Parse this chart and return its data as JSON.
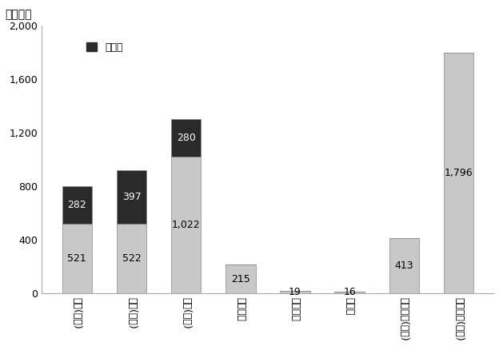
{
  "categories": [
    "日本(国立)",
    "日本(公立)",
    "日本(私立)",
    "イギリス",
    "フランス",
    "ドイツ",
    "アメリカ(州立)",
    "アメリカ(私立)"
  ],
  "base_values": [
    521,
    522,
    1022,
    215,
    19,
    16,
    413,
    1796
  ],
  "top_values": [
    282,
    397,
    280,
    0,
    0,
    0,
    0,
    0
  ],
  "base_labels": [
    "521",
    "522",
    "1,022",
    "215",
    "19",
    "16",
    "413",
    "1,796"
  ],
  "top_labels": [
    "282",
    "397",
    "280",
    "",
    "",
    "",
    "",
    ""
  ],
  "bar_color_base": "#c8c8c8",
  "bar_color_top": "#2a2a2a",
  "bar_edge_color": "#888888",
  "ylim": [
    0,
    2000
  ],
  "yticks": [
    0,
    400,
    800,
    1200,
    1600,
    2000
  ],
  "ytick_labels": [
    "0",
    "400",
    "800",
    "1,200",
    "1,600",
    "2,000"
  ],
  "ylabel": "（千円）",
  "legend_label": "入学金",
  "background_color": "#ffffff",
  "title_fontsize": 10,
  "label_fontsize": 9,
  "tick_fontsize": 9
}
